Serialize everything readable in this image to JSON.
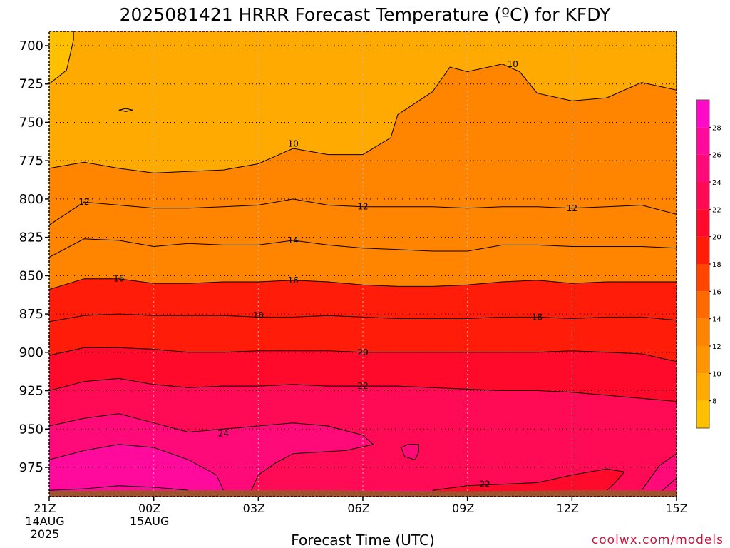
{
  "chart_data": {
    "type": "time-height contour",
    "title": "2025081421 HRRR Forecast Temperature (ºC) for KFDY",
    "xlabel": "Forecast Time (UTC)",
    "ylabel": "",
    "credit": "coolwx.com/models",
    "x_ticks": [
      {
        "hour": 0,
        "lines": [
          "21Z",
          "14AUG",
          "2025"
        ]
      },
      {
        "hour": 3,
        "lines": [
          "00Z",
          "15AUG"
        ]
      },
      {
        "hour": 6,
        "lines": [
          "03Z"
        ]
      },
      {
        "hour": 9,
        "lines": [
          "06Z"
        ]
      },
      {
        "hour": 12,
        "lines": [
          "09Z"
        ]
      },
      {
        "hour": 15,
        "lines": [
          "12Z"
        ]
      },
      {
        "hour": 18,
        "lines": [
          "15Z"
        ]
      }
    ],
    "xlim": [
      0,
      18
    ],
    "y_ticks": [
      700,
      725,
      750,
      775,
      800,
      825,
      850,
      875,
      900,
      925,
      950,
      975
    ],
    "ylim": [
      993,
      690
    ],
    "surface_pressure": [
      990.5,
      990.2,
      990.0,
      990.0,
      990.0,
      990.0,
      990.0,
      990.0,
      990.0,
      990.2,
      990.4,
      990.5,
      990.6,
      990.4,
      990.2,
      990.0,
      990.0,
      990.1,
      990.3
    ],
    "colorbar": {
      "ticks": [
        8,
        10,
        12,
        14,
        16,
        18,
        20,
        22,
        24,
        26,
        28
      ],
      "levels": [
        6,
        8,
        10,
        12,
        14,
        16,
        18,
        20,
        22,
        24,
        26,
        28,
        30
      ],
      "colors": [
        "#ffc000",
        "#ffaa00",
        "#ff9500",
        "#ff8400",
        "#ff6a00",
        "#ff4500",
        "#ff1d0a",
        "#ff0a2a",
        "#ff0a55",
        "#ff0a78",
        "#ff0a9c",
        "#ff0ac8"
      ]
    },
    "contours": [
      {
        "value": 10,
        "points": [
          [
            0,
            725
          ],
          [
            0.5,
            716
          ],
          [
            0.7,
            696
          ],
          [
            0.7,
            690
          ],
          [
            0,
            690
          ]
        ],
        "label": null
      },
      {
        "value": 10,
        "points": [
          [
            0,
            780
          ],
          [
            1,
            776
          ],
          [
            2,
            780
          ],
          [
            3,
            783
          ],
          [
            4,
            782
          ],
          [
            5,
            781
          ],
          [
            6,
            777
          ],
          [
            6.5,
            772
          ],
          [
            7,
            767
          ],
          [
            8,
            771
          ],
          [
            9,
            771
          ],
          [
            9.8,
            760
          ],
          [
            10,
            745
          ],
          [
            11,
            730
          ],
          [
            11.5,
            714
          ],
          [
            12,
            717
          ],
          [
            13,
            712
          ],
          [
            13.5,
            717
          ],
          [
            14,
            731
          ],
          [
            15,
            736
          ],
          [
            16,
            734
          ],
          [
            17,
            724
          ],
          [
            18,
            729
          ],
          [
            18,
            690
          ],
          [
            0,
            690
          ]
        ],
        "label": {
          "x": 7,
          "y": 764,
          "text": "10"
        }
      },
      {
        "value": 10,
        "points": [
          [
            2.2,
            741
          ],
          [
            2.4,
            742
          ],
          [
            2.2,
            743
          ],
          [
            2.0,
            742
          ],
          [
            2.2,
            741
          ]
        ],
        "label": null
      },
      {
        "value": 10,
        "points": [
          [
            13.3,
            712
          ]
        ],
        "label": {
          "x": 13.3,
          "y": 712,
          "text": "10"
        }
      },
      {
        "value": 12,
        "points": [
          [
            0,
            817
          ],
          [
            1,
            802
          ],
          [
            2,
            804
          ],
          [
            3,
            806
          ],
          [
            4,
            806
          ],
          [
            5,
            805
          ],
          [
            6,
            804
          ],
          [
            7,
            800
          ],
          [
            8,
            804
          ],
          [
            9,
            805
          ],
          [
            10,
            805
          ],
          [
            11,
            805
          ],
          [
            12,
            806
          ],
          [
            13,
            805
          ],
          [
            14,
            805
          ],
          [
            15,
            806
          ],
          [
            16,
            805
          ],
          [
            17,
            804
          ],
          [
            18,
            810
          ]
        ],
        "label": {
          "x": 1,
          "y": 802,
          "text": "12"
        }
      },
      {
        "value": 12,
        "points": [
          [
            9,
            805
          ]
        ],
        "label": {
          "x": 9,
          "y": 805,
          "text": "12"
        }
      },
      {
        "value": 12,
        "points": [
          [
            15,
            806
          ]
        ],
        "label": {
          "x": 15,
          "y": 806,
          "text": "12"
        }
      },
      {
        "value": 14,
        "points": [
          [
            0,
            838
          ],
          [
            1,
            826
          ],
          [
            2,
            827
          ],
          [
            3,
            831
          ],
          [
            4,
            829
          ],
          [
            5,
            830
          ],
          [
            6,
            830
          ],
          [
            7,
            827
          ],
          [
            8,
            830
          ],
          [
            9,
            832
          ],
          [
            10,
            833
          ],
          [
            11,
            834
          ],
          [
            12,
            834
          ],
          [
            13,
            830
          ],
          [
            14,
            830
          ],
          [
            15,
            831
          ],
          [
            16,
            831
          ],
          [
            17,
            831
          ],
          [
            18,
            832
          ]
        ],
        "label": {
          "x": 7,
          "y": 827,
          "text": "14"
        }
      },
      {
        "value": 16,
        "points": [
          [
            0,
            859
          ],
          [
            1,
            852
          ],
          [
            2,
            852
          ],
          [
            3,
            855
          ],
          [
            4,
            855
          ],
          [
            5,
            854
          ],
          [
            6,
            854
          ],
          [
            7,
            853
          ],
          [
            8,
            854
          ],
          [
            9,
            856
          ],
          [
            10,
            857
          ],
          [
            11,
            857
          ],
          [
            12,
            856
          ],
          [
            13,
            854
          ],
          [
            14,
            853
          ],
          [
            15,
            855
          ],
          [
            16,
            854
          ],
          [
            17,
            854
          ],
          [
            18,
            854
          ]
        ],
        "label": {
          "x": 2,
          "y": 852,
          "text": "16"
        }
      },
      {
        "value": 16,
        "points": [
          [
            7,
            853
          ]
        ],
        "label": {
          "x": 7,
          "y": 853,
          "text": "16"
        }
      },
      {
        "value": 18,
        "points": [
          [
            0,
            880
          ],
          [
            1,
            876
          ],
          [
            2,
            875
          ],
          [
            3,
            876
          ],
          [
            4,
            876
          ],
          [
            5,
            876
          ],
          [
            6,
            877
          ],
          [
            7,
            877
          ],
          [
            8,
            876
          ],
          [
            9,
            877
          ],
          [
            10,
            878
          ],
          [
            11,
            878
          ],
          [
            12,
            878
          ],
          [
            13,
            877
          ],
          [
            14,
            877
          ],
          [
            15,
            878
          ],
          [
            16,
            877
          ],
          [
            17,
            877
          ],
          [
            18,
            879
          ]
        ],
        "label": {
          "x": 6,
          "y": 876,
          "text": "18"
        }
      },
      {
        "value": 18,
        "points": [
          [
            14,
            877
          ]
        ],
        "label": {
          "x": 14,
          "y": 877,
          "text": "18"
        }
      },
      {
        "value": 20,
        "points": [
          [
            0,
            902
          ],
          [
            1,
            897
          ],
          [
            2,
            897
          ],
          [
            3,
            898
          ],
          [
            4,
            900
          ],
          [
            5,
            900
          ],
          [
            6,
            899
          ],
          [
            7,
            899
          ],
          [
            8,
            899
          ],
          [
            9,
            900
          ],
          [
            10,
            900
          ],
          [
            11,
            900
          ],
          [
            12,
            900
          ],
          [
            13,
            900
          ],
          [
            14,
            900
          ],
          [
            15,
            899
          ],
          [
            16,
            900
          ],
          [
            17,
            901
          ],
          [
            18,
            906
          ]
        ],
        "label": {
          "x": 9,
          "y": 900,
          "text": "20"
        }
      },
      {
        "value": 22,
        "points": [
          [
            0,
            925
          ],
          [
            1,
            919
          ],
          [
            2,
            917
          ],
          [
            3,
            921
          ],
          [
            4,
            923
          ],
          [
            5,
            922
          ],
          [
            6,
            922
          ],
          [
            7,
            921
          ],
          [
            8,
            922
          ],
          [
            9,
            922
          ],
          [
            10,
            922
          ],
          [
            11,
            923
          ],
          [
            12,
            924
          ],
          [
            13,
            925
          ],
          [
            14,
            925
          ],
          [
            15,
            926
          ],
          [
            16,
            928
          ],
          [
            17,
            930
          ],
          [
            18,
            932
          ]
        ],
        "label": {
          "x": 9,
          "y": 922,
          "text": "22"
        }
      },
      {
        "value": 24,
        "points": [
          [
            0,
            948
          ],
          [
            1,
            943
          ],
          [
            2,
            940
          ],
          [
            3,
            946
          ],
          [
            4,
            952
          ],
          [
            5,
            950
          ],
          [
            6,
            948
          ],
          [
            7,
            946
          ],
          [
            8,
            948
          ],
          [
            9,
            954
          ],
          [
            9.3,
            960
          ],
          [
            8.5,
            964
          ],
          [
            7,
            966
          ],
          [
            6.5,
            972
          ],
          [
            6,
            980
          ],
          [
            5.8,
            990
          ]
        ],
        "label": {
          "x": 5,
          "y": 953,
          "text": "24"
        }
      },
      {
        "value": 26,
        "points": [
          [
            0,
            970
          ],
          [
            1,
            964
          ],
          [
            2,
            960
          ],
          [
            3,
            962
          ],
          [
            4,
            970
          ],
          [
            4.8,
            980
          ],
          [
            5,
            990
          ]
        ],
        "label": null
      },
      {
        "value": 24,
        "points": [
          [
            10.1,
            962
          ],
          [
            10.3,
            960
          ],
          [
            10.6,
            960
          ],
          [
            10.6,
            965
          ],
          [
            10.5,
            970
          ],
          [
            10.2,
            968
          ],
          [
            10.1,
            962
          ]
        ],
        "label": null
      },
      {
        "value": 22,
        "points": [
          [
            0,
            990
          ],
          [
            1,
            989
          ],
          [
            2,
            987
          ],
          [
            3,
            988
          ],
          [
            4,
            990
          ]
        ],
        "label": null
      },
      {
        "value": 22,
        "points": [
          [
            11,
            990
          ],
          [
            12,
            987
          ],
          [
            13,
            986
          ],
          [
            14,
            985
          ],
          [
            15,
            980
          ],
          [
            16,
            976
          ],
          [
            16.5,
            978
          ],
          [
            16.2,
            986
          ],
          [
            16,
            990
          ]
        ],
        "label": {
          "x": 12.5,
          "y": 986,
          "text": "22"
        }
      },
      {
        "value": 24,
        "points": [
          [
            17,
            990
          ],
          [
            17.5,
            974
          ],
          [
            18,
            966
          ]
        ],
        "label": null
      },
      {
        "value": 24,
        "points": [
          [
            18,
            982
          ],
          [
            17.8,
            986
          ],
          [
            17.6,
            990
          ]
        ],
        "label": null
      }
    ]
  }
}
